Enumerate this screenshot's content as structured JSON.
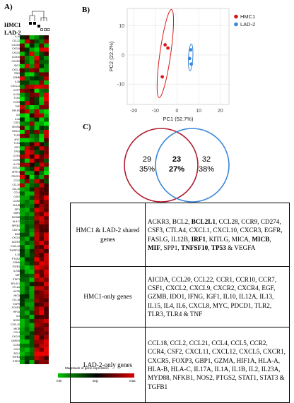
{
  "panels": {
    "a": "A)",
    "b": "B)",
    "c": "C)"
  },
  "heatmap": {
    "samples": [
      "HMC1",
      "LAD-2"
    ],
    "genes": [
      "IL10",
      "CCL22",
      "CXCR4",
      "CXCL6",
      "CXCL8",
      "CCR10",
      "CXCR2",
      "IDO1",
      "CXCL1",
      "IFNG",
      "GZMB",
      "IL1B",
      "CXCL11",
      "CCR7",
      "IL12A",
      "TLR3",
      "CCR3",
      "TNF",
      "RPLP0",
      "IL6",
      "IL1A",
      "CSF1",
      "VEGFA",
      "FASLG",
      "TLR2",
      "MYC",
      "TLR4",
      "IGF1",
      "TP53",
      "CCR1",
      "CCR9",
      "IL17A",
      "KITLG",
      "HPRT1",
      "PDCD1",
      "CCL5",
      "CCL20",
      "CCL19",
      "CCL4",
      "CSF2",
      "CCR2",
      "HLA-B",
      "IRF1",
      "GBP1",
      "MYD88",
      "HLA-C",
      "NFKB1",
      "CD274",
      "B2M",
      "CXCL5",
      "ACKR3",
      "CXCL12",
      "TNFSF10",
      "IL15",
      "PTGS2",
      "GZMA",
      "TGFB1",
      "IL23A",
      "MIF",
      "STAT1",
      "BCL2L1",
      "CTLA4",
      "ACTB",
      "MICA",
      "CCL18",
      "EGFR",
      "FOXP3",
      "HIF1A",
      "IL2",
      "NOS2",
      "CXCL10",
      "MICB",
      "CCL4",
      "CXCL9",
      "GAPDH",
      "CCR4",
      "CCL2",
      "BCL2",
      "TGFB1",
      "STAT3"
    ],
    "legend_title": "Magnitude of gene expression",
    "legend_ticks": [
      "min",
      "avg",
      "max"
    ],
    "colors": {
      "low": "#00c000",
      "mid": "#000000",
      "high": "#e00000"
    }
  },
  "pca": {
    "xlabel": "PC1 (52.7%)",
    "ylabel": "PC2 (22.2%)",
    "xticks": [
      "-20",
      "-10",
      "0",
      "10",
      "20"
    ],
    "yticks": [
      "10",
      "0",
      "-10"
    ],
    "xlim": [
      -23,
      24
    ],
    "ylim": [
      -17,
      16
    ],
    "legend": [
      {
        "label": "HMC1",
        "color": "#d7191c"
      },
      {
        "label": "LAD-2",
        "color": "#3b86d8"
      }
    ]
  },
  "chart_data": {
    "type": "scatter",
    "xlabel": "PC1 (52.7%)",
    "ylabel": "PC2 (22.2%)",
    "xlim": [
      -23,
      24
    ],
    "ylim": [
      -17,
      16
    ],
    "grid": true,
    "legend_position": "top-right",
    "series": [
      {
        "name": "HMC1",
        "color": "#d7191c",
        "points": [
          [
            -5.5,
            3.5
          ],
          [
            -4.2,
            2.4
          ],
          [
            -6.8,
            -7.5
          ]
        ],
        "ellipse": {
          "cx": -5.4,
          "cy": 0.5,
          "rx": 2.5,
          "ry": 15.3,
          "angle": 8
        }
      },
      {
        "name": "LAD-2",
        "color": "#3b86d8",
        "points": [
          [
            6.3,
            1.8
          ],
          [
            5.8,
            -1.2
          ],
          [
            6.6,
            -3.1
          ]
        ],
        "ellipse": {
          "cx": 6.3,
          "cy": -0.8,
          "rx": 1.0,
          "ry": 4.6,
          "angle": 3
        }
      }
    ]
  },
  "venn": {
    "left": {
      "count": "29",
      "percent": "35%",
      "color": "#b01c2e"
    },
    "center": {
      "count": "23",
      "percent": "27%"
    },
    "right": {
      "count": "32",
      "percent": "38%",
      "color": "#3b86d8"
    }
  },
  "genes_table": {
    "rows": [
      {
        "category": "HMC1 & LAD-2 shared genes",
        "segments": [
          {
            "t": "ACKR3, BCL2, "
          },
          {
            "t": "BCL2L1",
            "b": true
          },
          {
            "t": ", CCL28, CCR9, CD274, CSF3, CTLA4, CXCL1, CXCL10, CXCR3, EGFR, FASLG, IL12B, "
          },
          {
            "t": "IRF1",
            "b": true
          },
          {
            "t": ", KITLG, MICA, "
          },
          {
            "t": "MICB",
            "b": true
          },
          {
            "t": ", "
          },
          {
            "t": "MIF",
            "b": true
          },
          {
            "t": ", SPP1, "
          },
          {
            "t": "TNFSF10",
            "b": true
          },
          {
            "t": ", "
          },
          {
            "t": "TP53",
            "b": true
          },
          {
            "t": " & VEGFA"
          }
        ]
      },
      {
        "category": "HMC1-only genes",
        "segments": [
          {
            "t": "AICDA, CCL20, CCL22, CCR1, CCR10, CCR7, CSF1, CXCL2, CXCL9, CXCR2, CXCR4, EGF, GZMB, IDO1, IFNG, IGF1, IL10, IL12A, IL13, IL15, IL4, IL6, CXCL8, MYC, PDCD1, TLR2, TLR3, TLR4 & TNF"
          }
        ]
      },
      {
        "category": "LAD-2-only genes",
        "segments": [
          {
            "t": "CCL18, CCL2, CCL21, CCL4, CCL5, CCR2, CCR4, CSF2, CXCL11, CXCL12, CXCL5, CXCR1, CXCR5, FOXP3, GBP1, GZMA, HIF1A, HLA-A, HLA-B, HLA-C, IL17A, IL1A, IL1B, IL2, IL23A, MYD88, NFKB1, NOS2, PTGS2, STAT1, STAT3 & TGFB1"
          }
        ]
      }
    ]
  }
}
